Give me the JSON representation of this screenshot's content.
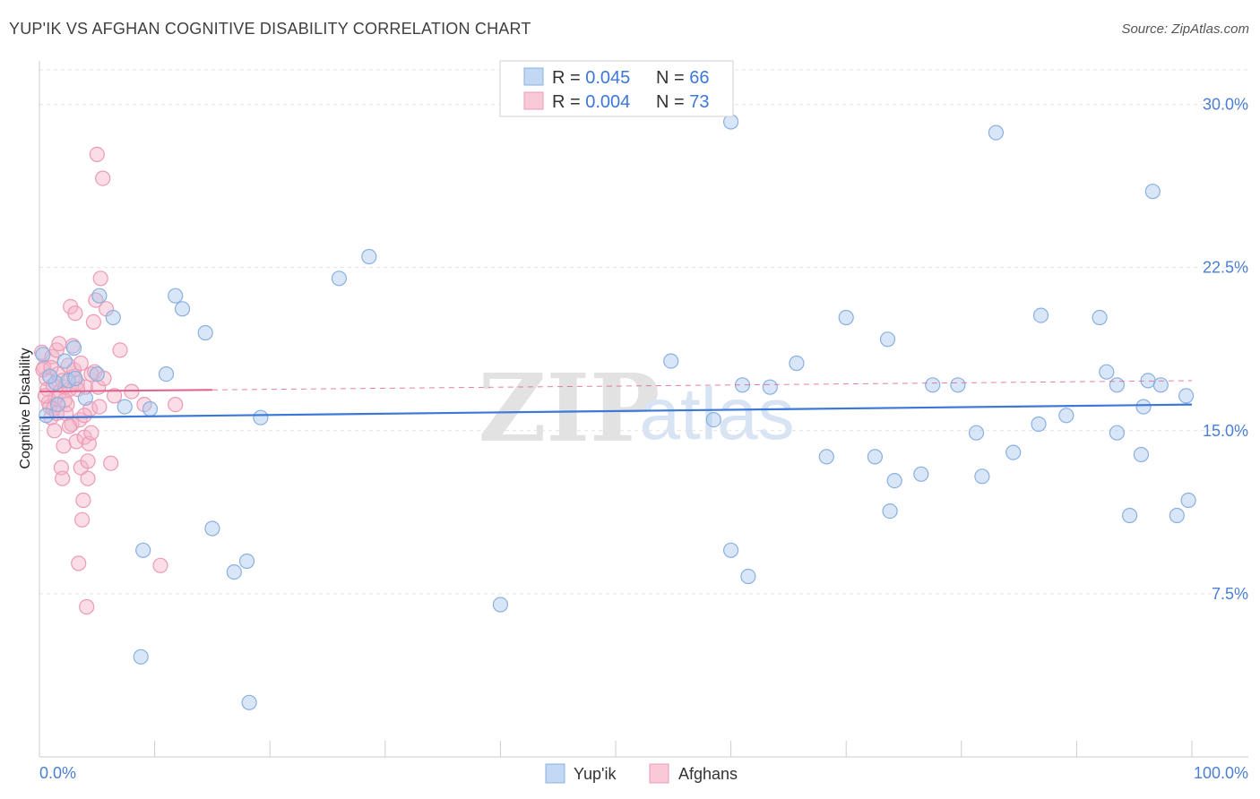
{
  "header": {
    "title": "YUP'IK VS AFGHAN COGNITIVE DISABILITY CORRELATION CHART",
    "source": "Source: ZipAtlas.com"
  },
  "watermark": {
    "zip": "ZIP",
    "atlas": "atlas"
  },
  "legend_top": [
    {
      "r_label": "R = ",
      "r_value": "0.045",
      "n_label": "N = ",
      "n_value": "66"
    },
    {
      "r_label": "R = ",
      "r_value": "0.004",
      "n_label": "N = ",
      "n_value": "73"
    }
  ],
  "chart_data": {
    "type": "scatter",
    "title": "YUP'IK VS AFGHAN COGNITIVE DISABILITY CORRELATION CHART",
    "xlabel": "",
    "ylabel": "Cognitive Disability",
    "xlim": [
      0,
      100
    ],
    "ylim": [
      0,
      32
    ],
    "x_tick_labels": [
      "0.0%",
      "100.0%"
    ],
    "y_ticks": [
      7.5,
      15.0,
      22.5,
      30.0
    ],
    "y_tick_labels": [
      "7.5%",
      "15.0%",
      "22.5%",
      "30.0%"
    ],
    "grid": true,
    "legend_position": "top-center",
    "series": [
      {
        "name": "Yup'ik",
        "color": "#a9c8f0",
        "line_color": "#3b78d8",
        "r": 0.045,
        "n": 66,
        "trend": {
          "x0": 0,
          "y0": 15.6,
          "x1": 100,
          "y1": 16.2,
          "dashed_from": null
        },
        "points": [
          [
            0.3,
            18.5
          ],
          [
            0.6,
            15.7
          ],
          [
            1.4,
            17.2
          ],
          [
            2.2,
            18.2
          ],
          [
            2.5,
            17.3
          ],
          [
            3.1,
            17.4
          ],
          [
            4.0,
            16.5
          ],
          [
            5.2,
            21.2
          ],
          [
            6.4,
            20.2
          ],
          [
            7.4,
            16.1
          ],
          [
            8.8,
            4.6
          ],
          [
            9.0,
            9.5
          ],
          [
            9.6,
            16.0
          ],
          [
            11.0,
            17.6
          ],
          [
            11.8,
            21.2
          ],
          [
            12.4,
            20.6
          ],
          [
            14.4,
            19.5
          ],
          [
            15.0,
            10.5
          ],
          [
            16.9,
            8.5
          ],
          [
            18.0,
            9.0
          ],
          [
            18.2,
            2.5
          ],
          [
            19.2,
            15.6
          ],
          [
            26.0,
            22.0
          ],
          [
            28.6,
            23.0
          ],
          [
            40.0,
            7.0
          ],
          [
            54.8,
            18.2
          ],
          [
            58.5,
            15.5
          ],
          [
            60.0,
            9.5
          ],
          [
            60.0,
            29.2
          ],
          [
            61.0,
            17.1
          ],
          [
            61.5,
            8.3
          ],
          [
            63.4,
            17.0
          ],
          [
            65.7,
            18.1
          ],
          [
            68.3,
            13.8
          ],
          [
            70.0,
            20.2
          ],
          [
            72.5,
            13.8
          ],
          [
            73.6,
            19.2
          ],
          [
            73.8,
            11.3
          ],
          [
            74.2,
            12.7
          ],
          [
            76.5,
            13.0
          ],
          [
            77.5,
            17.1
          ],
          [
            79.7,
            17.1
          ],
          [
            81.3,
            14.9
          ],
          [
            81.8,
            12.9
          ],
          [
            83.0,
            28.7
          ],
          [
            84.5,
            14.0
          ],
          [
            86.7,
            15.3
          ],
          [
            86.9,
            20.3
          ],
          [
            89.1,
            15.7
          ],
          [
            92.0,
            20.2
          ],
          [
            92.6,
            17.7
          ],
          [
            93.5,
            17.1
          ],
          [
            93.5,
            14.9
          ],
          [
            94.6,
            11.1
          ],
          [
            95.6,
            13.9
          ],
          [
            95.8,
            16.1
          ],
          [
            96.2,
            17.3
          ],
          [
            96.6,
            26.0
          ],
          [
            97.3,
            17.1
          ],
          [
            98.7,
            11.1
          ],
          [
            99.5,
            16.6
          ],
          [
            99.7,
            11.8
          ],
          [
            1.6,
            16.2
          ],
          [
            3.0,
            18.8
          ],
          [
            5.0,
            17.6
          ],
          [
            0.9,
            17.5
          ]
        ]
      },
      {
        "name": "Afghans",
        "color": "#f5b3c8",
        "line_color": "#e0608a",
        "r": 0.004,
        "n": 73,
        "trend": {
          "x0": 0,
          "y0": 16.8,
          "x1": 100,
          "y1": 17.3,
          "dashed_from": 15
        },
        "points": [
          [
            0.2,
            18.6
          ],
          [
            0.4,
            17.9
          ],
          [
            0.6,
            17.4
          ],
          [
            0.7,
            16.9
          ],
          [
            0.8,
            16.3
          ],
          [
            0.9,
            16.1
          ],
          [
            1.0,
            15.6
          ],
          [
            1.1,
            18.4
          ],
          [
            1.2,
            17.1
          ],
          [
            1.3,
            15.0
          ],
          [
            1.4,
            16.5
          ],
          [
            1.5,
            18.7
          ],
          [
            1.6,
            17.6
          ],
          [
            1.7,
            19.0
          ],
          [
            1.8,
            16.8
          ],
          [
            1.9,
            13.3
          ],
          [
            2.0,
            12.8
          ],
          [
            2.1,
            14.3
          ],
          [
            2.2,
            17.0
          ],
          [
            2.3,
            15.8
          ],
          [
            2.4,
            16.2
          ],
          [
            2.5,
            18.0
          ],
          [
            2.6,
            16.9
          ],
          [
            2.7,
            20.7
          ],
          [
            2.8,
            15.3
          ],
          [
            2.9,
            18.9
          ],
          [
            3.0,
            17.5
          ],
          [
            3.1,
            20.4
          ],
          [
            3.2,
            14.5
          ],
          [
            3.3,
            17.2
          ],
          [
            3.4,
            8.9
          ],
          [
            3.5,
            15.5
          ],
          [
            3.6,
            13.3
          ],
          [
            3.7,
            10.9
          ],
          [
            3.8,
            11.8
          ],
          [
            3.9,
            14.7
          ],
          [
            4.0,
            17.0
          ],
          [
            4.1,
            6.9
          ],
          [
            4.2,
            12.8
          ],
          [
            4.3,
            14.4
          ],
          [
            4.4,
            16.0
          ],
          [
            4.5,
            17.6
          ],
          [
            4.7,
            20.0
          ],
          [
            4.8,
            17.7
          ],
          [
            4.9,
            21.0
          ],
          [
            5.0,
            27.7
          ],
          [
            5.2,
            16.1
          ],
          [
            5.3,
            22.0
          ],
          [
            5.5,
            26.6
          ],
          [
            5.8,
            20.6
          ],
          [
            6.2,
            13.5
          ],
          [
            6.5,
            16.6
          ],
          [
            7.0,
            18.7
          ],
          [
            8.0,
            16.8
          ],
          [
            9.1,
            16.2
          ],
          [
            10.5,
            8.8
          ],
          [
            11.8,
            16.2
          ],
          [
            0.3,
            17.8
          ],
          [
            0.5,
            16.6
          ],
          [
            1.0,
            17.9
          ],
          [
            1.2,
            16.0
          ],
          [
            1.5,
            15.8
          ],
          [
            2.0,
            17.3
          ],
          [
            2.2,
            16.4
          ],
          [
            2.6,
            15.2
          ],
          [
            3.0,
            17.8
          ],
          [
            3.3,
            16.9
          ],
          [
            3.6,
            18.1
          ],
          [
            3.9,
            15.7
          ],
          [
            4.2,
            13.6
          ],
          [
            4.5,
            14.9
          ],
          [
            5.1,
            17.0
          ],
          [
            5.6,
            17.4
          ]
        ]
      }
    ]
  }
}
